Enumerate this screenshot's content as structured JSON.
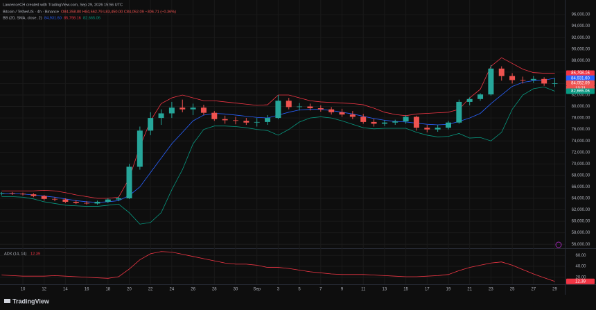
{
  "header": {
    "credit": "LawrenceCH created with TradingView.com, Sep 29, 2026 15:56 UTC",
    "symbol": "Bitcoin / TetherUS · 4h · Binance",
    "ohlc": "O84,358.80 H84,562.79 L83,450.00 C84,052.09 −306.71 (−0.36%)",
    "bb_label": "BB (20, SMA, close, 2)",
    "bb_values": [
      "84,931.60",
      "85,798.16",
      "82,665.06"
    ]
  },
  "footer": {
    "logo": "TradingView"
  },
  "chart_data": [
    {
      "type": "candlestick",
      "categories": [
        null,
        null,
        "10",
        null,
        "12",
        null,
        "14",
        null,
        "16",
        null,
        "18",
        null,
        "20",
        null,
        "22",
        null,
        "24",
        null,
        "26",
        null,
        "28",
        null,
        "30",
        null,
        "Sep",
        null,
        "3",
        null,
        "5",
        null,
        "7",
        null,
        "9",
        null,
        "11",
        null,
        "13",
        null,
        "15",
        null,
        "17",
        null,
        "19",
        null,
        "21",
        null,
        "23",
        null,
        "25",
        null,
        "27",
        null,
        "29"
      ],
      "open": [
        64800,
        64900,
        64800,
        64700,
        64400,
        63900,
        63800,
        63400,
        63200,
        63100,
        63400,
        63800,
        64000,
        69500,
        75800,
        78000,
        78800,
        79800,
        79500,
        79800,
        78900,
        77800,
        77600,
        77500,
        77200,
        77300,
        78000,
        81000,
        79900,
        80000,
        79700,
        79500,
        79000,
        78600,
        78200,
        77300,
        77000,
        77200,
        77400,
        78200,
        76300,
        76000,
        76300,
        77200,
        80800,
        81300,
        82100,
        86600,
        85300,
        84600,
        84600,
        84800,
        84000
      ],
      "high": [
        65100,
        65100,
        65000,
        64900,
        64600,
        64200,
        64000,
        63700,
        63500,
        63600,
        64000,
        64300,
        70000,
        76500,
        79000,
        79500,
        80800,
        81200,
        80500,
        80300,
        79200,
        78400,
        78200,
        78000,
        78000,
        78500,
        82000,
        81500,
        80600,
        80500,
        80200,
        79900,
        79600,
        79200,
        78700,
        77800,
        77600,
        77700,
        78500,
        78400,
        76800,
        76800,
        77500,
        81200,
        81600,
        82300,
        87200,
        87000,
        85800,
        85200,
        85300,
        85100,
        84900
      ],
      "low": [
        64500,
        64600,
        64500,
        64200,
        63600,
        63500,
        63200,
        63000,
        62900,
        62900,
        63200,
        63500,
        63900,
        69000,
        75000,
        76800,
        78000,
        79000,
        78500,
        78500,
        77500,
        77000,
        76900,
        76800,
        76500,
        76800,
        77800,
        79500,
        79300,
        79300,
        79100,
        78600,
        78200,
        77800,
        77000,
        76500,
        76600,
        76800,
        77000,
        75800,
        75500,
        75600,
        76000,
        77000,
        80200,
        81000,
        81900,
        84500,
        84000,
        84000,
        84100,
        83600,
        83400
      ],
      "close": [
        64900,
        64800,
        64700,
        64400,
        63900,
        63800,
        63400,
        63200,
        63100,
        63400,
        63800,
        64000,
        69500,
        75800,
        78000,
        78800,
        79800,
        79500,
        79800,
        78900,
        77800,
        77600,
        77500,
        77200,
        77300,
        78000,
        81000,
        79900,
        80000,
        79700,
        79500,
        79000,
        78600,
        78200,
        77300,
        77000,
        77200,
        77400,
        78200,
        76300,
        76000,
        76300,
        77200,
        80800,
        81300,
        82100,
        86600,
        85300,
        84600,
        84500,
        84800,
        84000,
        84052.09
      ],
      "up_color": "#26a69a",
      "down_color": "#ef5350",
      "overlays": [
        {
          "color": "#f23645",
          "values": [
            65300,
            65300,
            65300,
            65300,
            65400,
            65300,
            65000,
            64600,
            64300,
            64000,
            64000,
            64200,
            67500,
            73000,
            77500,
            80500,
            81500,
            82000,
            81500,
            81000,
            81000,
            80800,
            80600,
            80400,
            80200,
            80300,
            82000,
            82000,
            81500,
            81000,
            80800,
            80700,
            80600,
            80500,
            80300,
            79700,
            79000,
            78600,
            78400,
            78700,
            78800,
            78900,
            79000,
            79500,
            81500,
            83000,
            87000,
            88500,
            87500,
            86500,
            85900,
            85800,
            85798.16
          ]
        },
        {
          "color": "#2962ff",
          "values": [
            64800,
            64800,
            64750,
            64600,
            64400,
            64200,
            63900,
            63600,
            63400,
            63300,
            63400,
            63600,
            64500,
            66000,
            68500,
            71000,
            73500,
            75500,
            77500,
            78500,
            78800,
            78700,
            78500,
            78300,
            78100,
            78000,
            78500,
            79000,
            79400,
            79500,
            79500,
            79300,
            79000,
            78700,
            78300,
            77900,
            77600,
            77400,
            77300,
            77100,
            76900,
            76800,
            76900,
            77400,
            78000,
            78800,
            80500,
            82000,
            83500,
            84200,
            84500,
            84600,
            84931.6
          ]
        },
        {
          "color": "#089981",
          "values": [
            64300,
            64300,
            64200,
            63900,
            63400,
            63100,
            62800,
            62700,
            62600,
            62600,
            62800,
            63000,
            61500,
            59500,
            59800,
            61500,
            65500,
            69000,
            73500,
            76000,
            76600,
            76600,
            76500,
            76300,
            76000,
            75800,
            75000,
            76000,
            77300,
            78000,
            78200,
            78000,
            77500,
            76900,
            76300,
            76100,
            76200,
            76200,
            76200,
            75500,
            75000,
            74700,
            74800,
            75300,
            74500,
            74600,
            74000,
            75500,
            79500,
            82000,
            83100,
            83400,
            82665.06
          ]
        }
      ],
      "ylim": [
        55300,
        97100
      ],
      "yticks": [
        {
          "value": 56000,
          "label": "56,000.00"
        },
        {
          "value": 58000,
          "label": "58,000.00"
        },
        {
          "value": 60000,
          "label": "60,000.00"
        },
        {
          "value": 62000,
          "label": "62,000.00"
        },
        {
          "value": 64000,
          "label": "64,000.00"
        },
        {
          "value": 66000,
          "label": "66,000.00"
        },
        {
          "value": 68000,
          "label": "68,000.00"
        },
        {
          "value": 70000,
          "label": "70,000.00"
        },
        {
          "value": 72000,
          "label": "72,000.00"
        },
        {
          "value": 74000,
          "label": "74,000.00"
        },
        {
          "value": 76000,
          "label": "76,000.00"
        },
        {
          "value": 78000,
          "label": "78,000.00"
        },
        {
          "value": 80000,
          "label": "80,000.00"
        },
        {
          "value": 82000,
          "label": "82,000.00"
        },
        {
          "value": 84000,
          "label": "84,000.00"
        },
        {
          "value": 86000,
          "label": "86,000.00"
        },
        {
          "value": 88000,
          "label": "88,000.00"
        },
        {
          "value": 90000,
          "label": "90,000.00"
        },
        {
          "value": 92000,
          "label": "92,000.00"
        },
        {
          "value": 94000,
          "label": "94,000.00"
        },
        {
          "value": 96000,
          "label": "96,000.00"
        }
      ],
      "price_tags": [
        {
          "value": 85798.16,
          "label": "85,798.16",
          "color": "#f23645"
        },
        {
          "value": 84931.6,
          "label": "84,931.60",
          "color": "#2962ff"
        },
        {
          "value": 84052.09,
          "label": "84,052.09",
          "color": "#ef5350"
        },
        {
          "value": 82665.06,
          "label": "82,665.06",
          "color": "#089981"
        }
      ],
      "countdown": "13:21",
      "grid": true
    },
    {
      "type": "line",
      "title": "ADX (14, 14)",
      "color": "#f23645",
      "values": [
        24,
        23,
        22,
        22,
        22,
        23,
        22,
        21,
        20,
        19,
        18,
        21,
        35,
        52,
        63,
        67,
        66,
        62,
        58,
        54,
        50,
        46,
        44,
        44,
        42,
        38,
        38,
        36,
        33,
        30,
        28,
        26,
        25,
        25,
        25,
        24,
        23,
        22,
        21,
        21,
        22,
        23,
        25,
        32,
        38,
        42,
        46,
        48,
        42,
        34,
        26,
        19,
        12.39
      ],
      "ylim": [
        7,
        73
      ],
      "yticks": [
        {
          "value": 20,
          "label": "20.00"
        },
        {
          "value": 40,
          "label": "40.00"
        },
        {
          "value": 60,
          "label": "60.00"
        }
      ],
      "grid": true
    }
  ]
}
